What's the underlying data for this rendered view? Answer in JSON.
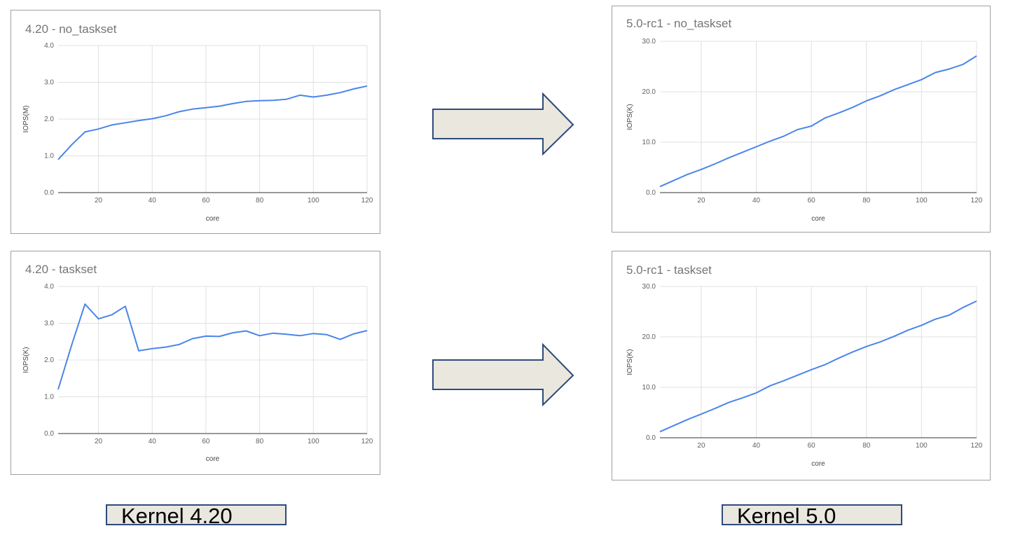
{
  "colors": {
    "line": "#4a86e8",
    "arrow_fill": "#eae7df",
    "arrow_stroke": "#2e4b7a"
  },
  "labels": {
    "kernel_old": "Kernel 4.20",
    "kernel_new": "Kernel 5.0"
  },
  "chart_data": [
    {
      "type": "line",
      "title": "4.20 - no_taskset",
      "xlabel": "core",
      "ylabel": "IOPS(M)",
      "xlim": [
        5,
        120
      ],
      "ylim": [
        0,
        4
      ],
      "x_ticks": [
        20,
        40,
        60,
        80,
        100,
        120
      ],
      "y_ticks": [
        "0.0",
        "1.0",
        "2.0",
        "3.0",
        "4.0"
      ],
      "grid": true,
      "x": [
        5,
        10,
        15,
        20,
        25,
        30,
        35,
        40,
        45,
        50,
        55,
        60,
        65,
        70,
        75,
        80,
        85,
        90,
        95,
        100,
        105,
        110,
        115,
        120
      ],
      "series": [
        {
          "values": [
            0.9,
            1.3,
            1.65,
            1.73,
            1.84,
            1.9,
            1.96,
            2.01,
            2.09,
            2.2,
            2.27,
            2.31,
            2.35,
            2.42,
            2.48,
            2.5,
            2.51,
            2.54,
            2.65,
            2.6,
            2.65,
            2.72,
            2.82,
            2.9
          ]
        }
      ]
    },
    {
      "type": "line",
      "title": "5.0-rc1 - no_taskset",
      "xlabel": "core",
      "ylabel": "IOPS(K)",
      "xlim": [
        5,
        120
      ],
      "ylim": [
        0,
        30
      ],
      "x_ticks": [
        20,
        40,
        60,
        80,
        100,
        120
      ],
      "y_ticks": [
        "0.0",
        "10.0",
        "20.0",
        "30.0"
      ],
      "grid": true,
      "x": [
        5,
        10,
        15,
        20,
        25,
        30,
        35,
        40,
        45,
        50,
        55,
        60,
        65,
        70,
        75,
        80,
        85,
        90,
        95,
        100,
        105,
        110,
        115,
        120
      ],
      "series": [
        {
          "values": [
            1.2,
            2.4,
            3.6,
            4.6,
            5.7,
            6.9,
            8.0,
            9.1,
            10.2,
            11.2,
            12.5,
            13.2,
            14.8,
            15.8,
            16.9,
            18.2,
            19.2,
            20.4,
            21.4,
            22.4,
            23.8,
            24.5,
            25.4,
            27.1
          ]
        }
      ]
    },
    {
      "type": "line",
      "title": "4.20 - taskset",
      "xlabel": "core",
      "ylabel": "IOPS(K)",
      "xlim": [
        5,
        120
      ],
      "ylim": [
        0,
        4
      ],
      "x_ticks": [
        20,
        40,
        60,
        80,
        100,
        120
      ],
      "y_ticks": [
        "0.0",
        "1.0",
        "2.0",
        "3.0",
        "4.0"
      ],
      "grid": true,
      "x": [
        5,
        10,
        15,
        20,
        25,
        30,
        35,
        40,
        45,
        50,
        55,
        60,
        65,
        70,
        75,
        80,
        85,
        90,
        95,
        100,
        105,
        110,
        115,
        120
      ],
      "series": [
        {
          "values": [
            1.2,
            2.4,
            3.52,
            3.12,
            3.23,
            3.46,
            2.25,
            2.31,
            2.35,
            2.42,
            2.58,
            2.65,
            2.64,
            2.74,
            2.79,
            2.66,
            2.73,
            2.7,
            2.66,
            2.72,
            2.69,
            2.56,
            2.71,
            2.8
          ]
        }
      ]
    },
    {
      "type": "line",
      "title": "5.0-rc1 - taskset",
      "xlabel": "core",
      "ylabel": "IOPS(K)",
      "xlim": [
        5,
        120
      ],
      "ylim": [
        0,
        30
      ],
      "x_ticks": [
        20,
        40,
        60,
        80,
        100,
        120
      ],
      "y_ticks": [
        "0.0",
        "10.0",
        "20.0",
        "30.0"
      ],
      "grid": true,
      "x": [
        5,
        10,
        15,
        20,
        25,
        30,
        35,
        40,
        45,
        50,
        55,
        60,
        65,
        70,
        75,
        80,
        85,
        90,
        95,
        100,
        105,
        110,
        115,
        120
      ],
      "series": [
        {
          "values": [
            1.2,
            2.4,
            3.6,
            4.7,
            5.8,
            7.0,
            7.9,
            8.9,
            10.3,
            11.3,
            12.4,
            13.5,
            14.5,
            15.8,
            17.0,
            18.1,
            19.0,
            20.1,
            21.3,
            22.3,
            23.5,
            24.3,
            25.8,
            27.1
          ]
        }
      ]
    }
  ]
}
